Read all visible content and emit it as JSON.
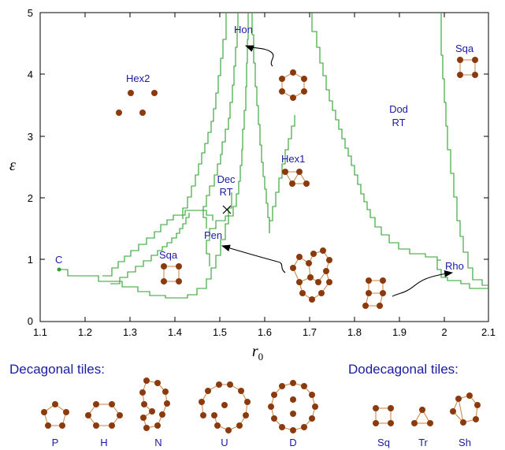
{
  "axes": {
    "xlabel": "r",
    "xlabel_sub": "0",
    "ylabel": "ε",
    "xlim": [
      1.1,
      2.1
    ],
    "ylim": [
      0,
      5
    ],
    "xticks": [
      "1.1",
      "1.2",
      "1.3",
      "1.4",
      "1.5",
      "1.6",
      "1.7",
      "1.8",
      "1.9",
      "2",
      "2.1"
    ],
    "yticks": [
      "0",
      "1",
      "2",
      "3",
      "4",
      "5"
    ]
  },
  "phase_labels": {
    "c": "C",
    "hex2": "Hex2",
    "hon": "Hon",
    "sqa_left": "Sqa",
    "sqa_right": "Sqa",
    "dec_rt_1": "Dec",
    "dec_rt_2": "RT",
    "pen": "Pen",
    "hex1": "Hex1",
    "dod_rt_1": "Dod",
    "dod_rt_2": "RT",
    "rho": "Rho"
  },
  "sections": {
    "decagonal": "Decagonal tiles:",
    "dodecagonal": "Dodecagonal tiles:"
  },
  "tiles": {
    "decagonal": [
      "P",
      "H",
      "N",
      "U",
      "D"
    ],
    "dodecagonal": [
      "Sq",
      "Tr",
      "Sh"
    ]
  },
  "colors": {
    "boundary": "#2ca02c",
    "particle": "#8b3a0e",
    "label": "#1a1aa6",
    "bond": "#c8823c"
  }
}
